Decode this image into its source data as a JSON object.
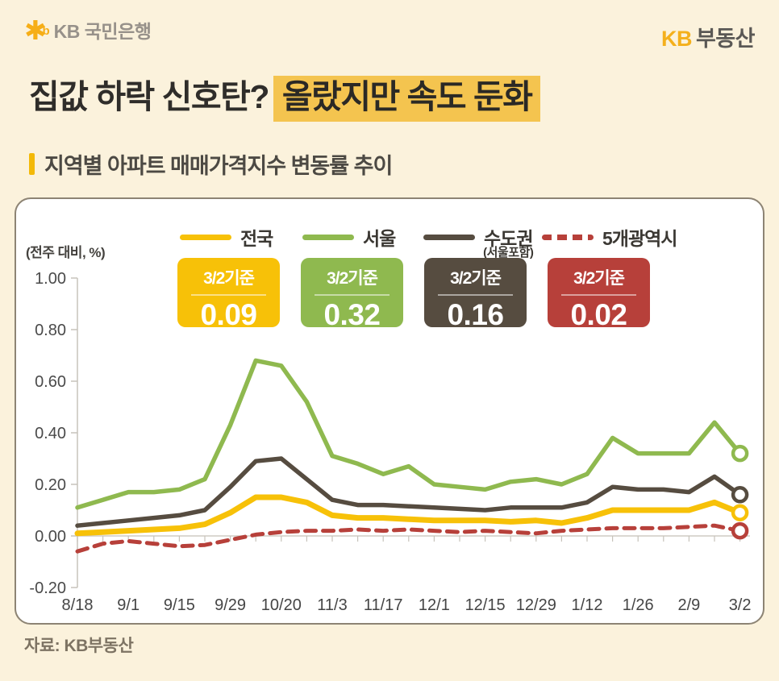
{
  "header": {
    "bank_star": "✱",
    "bank_star_b": "b",
    "bank_name": "KB 국민은행",
    "brand_kb": "KB",
    "brand_name": "부동산"
  },
  "title": {
    "plain": "집값 하락 신호탄?",
    "highlight": "올랐지만 속도 둔화"
  },
  "subtitle": {
    "text": "지역별 아파트 매매가격지수 변동률 추이"
  },
  "footer": {
    "text": "자료: KB부동산"
  },
  "colors": {
    "page_background": "#FBF2DC",
    "panel_background": "#FFFFFF",
    "panel_border": "#8D8474",
    "title_highlight": "#F4C44F",
    "accent_yellow": "#F3B908",
    "axis_gray": "#C7C3BB",
    "tick_text": "#4A4A4A"
  },
  "chart_data": {
    "type": "line",
    "unit_label": "(전주 대비, %)",
    "ylim": [
      -0.2,
      1.0
    ],
    "y_ticks": [
      "1.00",
      "0.80",
      "0.60",
      "0.40",
      "0.20",
      "0.00",
      "-0.20"
    ],
    "x_tick_labels": [
      "8/18",
      "9/1",
      "9/15",
      "9/29",
      "10/20",
      "11/3",
      "11/17",
      "12/1",
      "12/15",
      "12/29",
      "1/12",
      "1/26",
      "2/9",
      "3/2"
    ],
    "label_every": 2,
    "grid": "zero-line-only",
    "legend_position": "top",
    "x": [
      "8/18",
      "8/25",
      "9/1",
      "9/8",
      "9/15",
      "9/22",
      "9/29",
      "10/13",
      "10/20",
      "10/27",
      "11/3",
      "11/10",
      "11/17",
      "11/24",
      "12/1",
      "12/8",
      "12/15",
      "12/22",
      "12/29",
      "1/5",
      "1/12",
      "1/19",
      "1/26",
      "2/2",
      "2/9",
      "2/23",
      "3/2"
    ],
    "series": [
      {
        "key": "nationwide",
        "name": "전국",
        "color": "#F7C108",
        "dashed": false,
        "width": 7,
        "end_marker": true,
        "badge": {
          "label": "3/2기준",
          "value": "0.09"
        },
        "values": [
          0.01,
          0.015,
          0.02,
          0.025,
          0.03,
          0.045,
          0.09,
          0.15,
          0.15,
          0.13,
          0.08,
          0.07,
          0.07,
          0.065,
          0.06,
          0.06,
          0.06,
          0.055,
          0.06,
          0.05,
          0.07,
          0.1,
          0.1,
          0.1,
          0.1,
          0.13,
          0.09
        ]
      },
      {
        "key": "seoul",
        "name": "서울",
        "color": "#8FB94F",
        "dashed": false,
        "width": 5.5,
        "end_marker": true,
        "badge": {
          "label": "3/2기준",
          "value": "0.32"
        },
        "values": [
          0.11,
          0.14,
          0.17,
          0.17,
          0.18,
          0.22,
          0.43,
          0.68,
          0.66,
          0.52,
          0.31,
          0.28,
          0.24,
          0.27,
          0.2,
          0.19,
          0.18,
          0.21,
          0.22,
          0.2,
          0.24,
          0.38,
          0.32,
          0.32,
          0.32,
          0.44,
          0.32
        ]
      },
      {
        "key": "metro-area",
        "name": "수도권",
        "sub_label": "(서울포함)",
        "color": "#564C40",
        "dashed": false,
        "width": 5.5,
        "end_marker": true,
        "badge": {
          "label": "3/2기준",
          "value": "0.16"
        },
        "values": [
          0.04,
          0.05,
          0.06,
          0.07,
          0.08,
          0.1,
          0.19,
          0.29,
          0.3,
          0.22,
          0.14,
          0.12,
          0.12,
          0.115,
          0.11,
          0.105,
          0.1,
          0.11,
          0.11,
          0.11,
          0.13,
          0.19,
          0.18,
          0.18,
          0.17,
          0.23,
          0.16
        ]
      },
      {
        "key": "five-metro-cities",
        "name": "5개광역시",
        "color": "#B7403A",
        "dashed": true,
        "width": 5,
        "end_marker": true,
        "badge": {
          "label": "3/2기준",
          "value": "0.02"
        },
        "values": [
          -0.06,
          -0.03,
          -0.02,
          -0.03,
          -0.04,
          -0.035,
          -0.015,
          0.005,
          0.015,
          0.02,
          0.02,
          0.025,
          0.02,
          0.025,
          0.02,
          0.015,
          0.02,
          0.015,
          0.01,
          0.02,
          0.025,
          0.03,
          0.03,
          0.03,
          0.035,
          0.04,
          0.02
        ]
      }
    ]
  }
}
